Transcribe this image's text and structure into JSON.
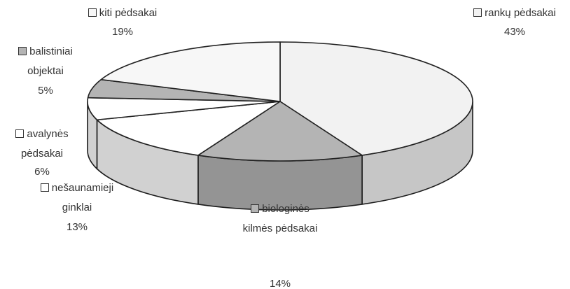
{
  "chart_data": {
    "type": "pie3d",
    "categories": [
      "rankų pėdsakai",
      "biologinės kilmės pėdsakai",
      "nešaunamieji ginklai",
      "avalynės pėdsakai",
      "balistiniai objektai",
      "kiti pėdsakai"
    ],
    "values": [
      43,
      14,
      13,
      6,
      5,
      19
    ],
    "value_labels": [
      "43%",
      "14%",
      "13%",
      "6%",
      "5%",
      "19%"
    ],
    "colors": [
      "#f2f2f2",
      "#b4b4b4",
      "#ffffff",
      "#ffffff",
      "#b4b4b4",
      "#f7f7f7"
    ]
  }
}
